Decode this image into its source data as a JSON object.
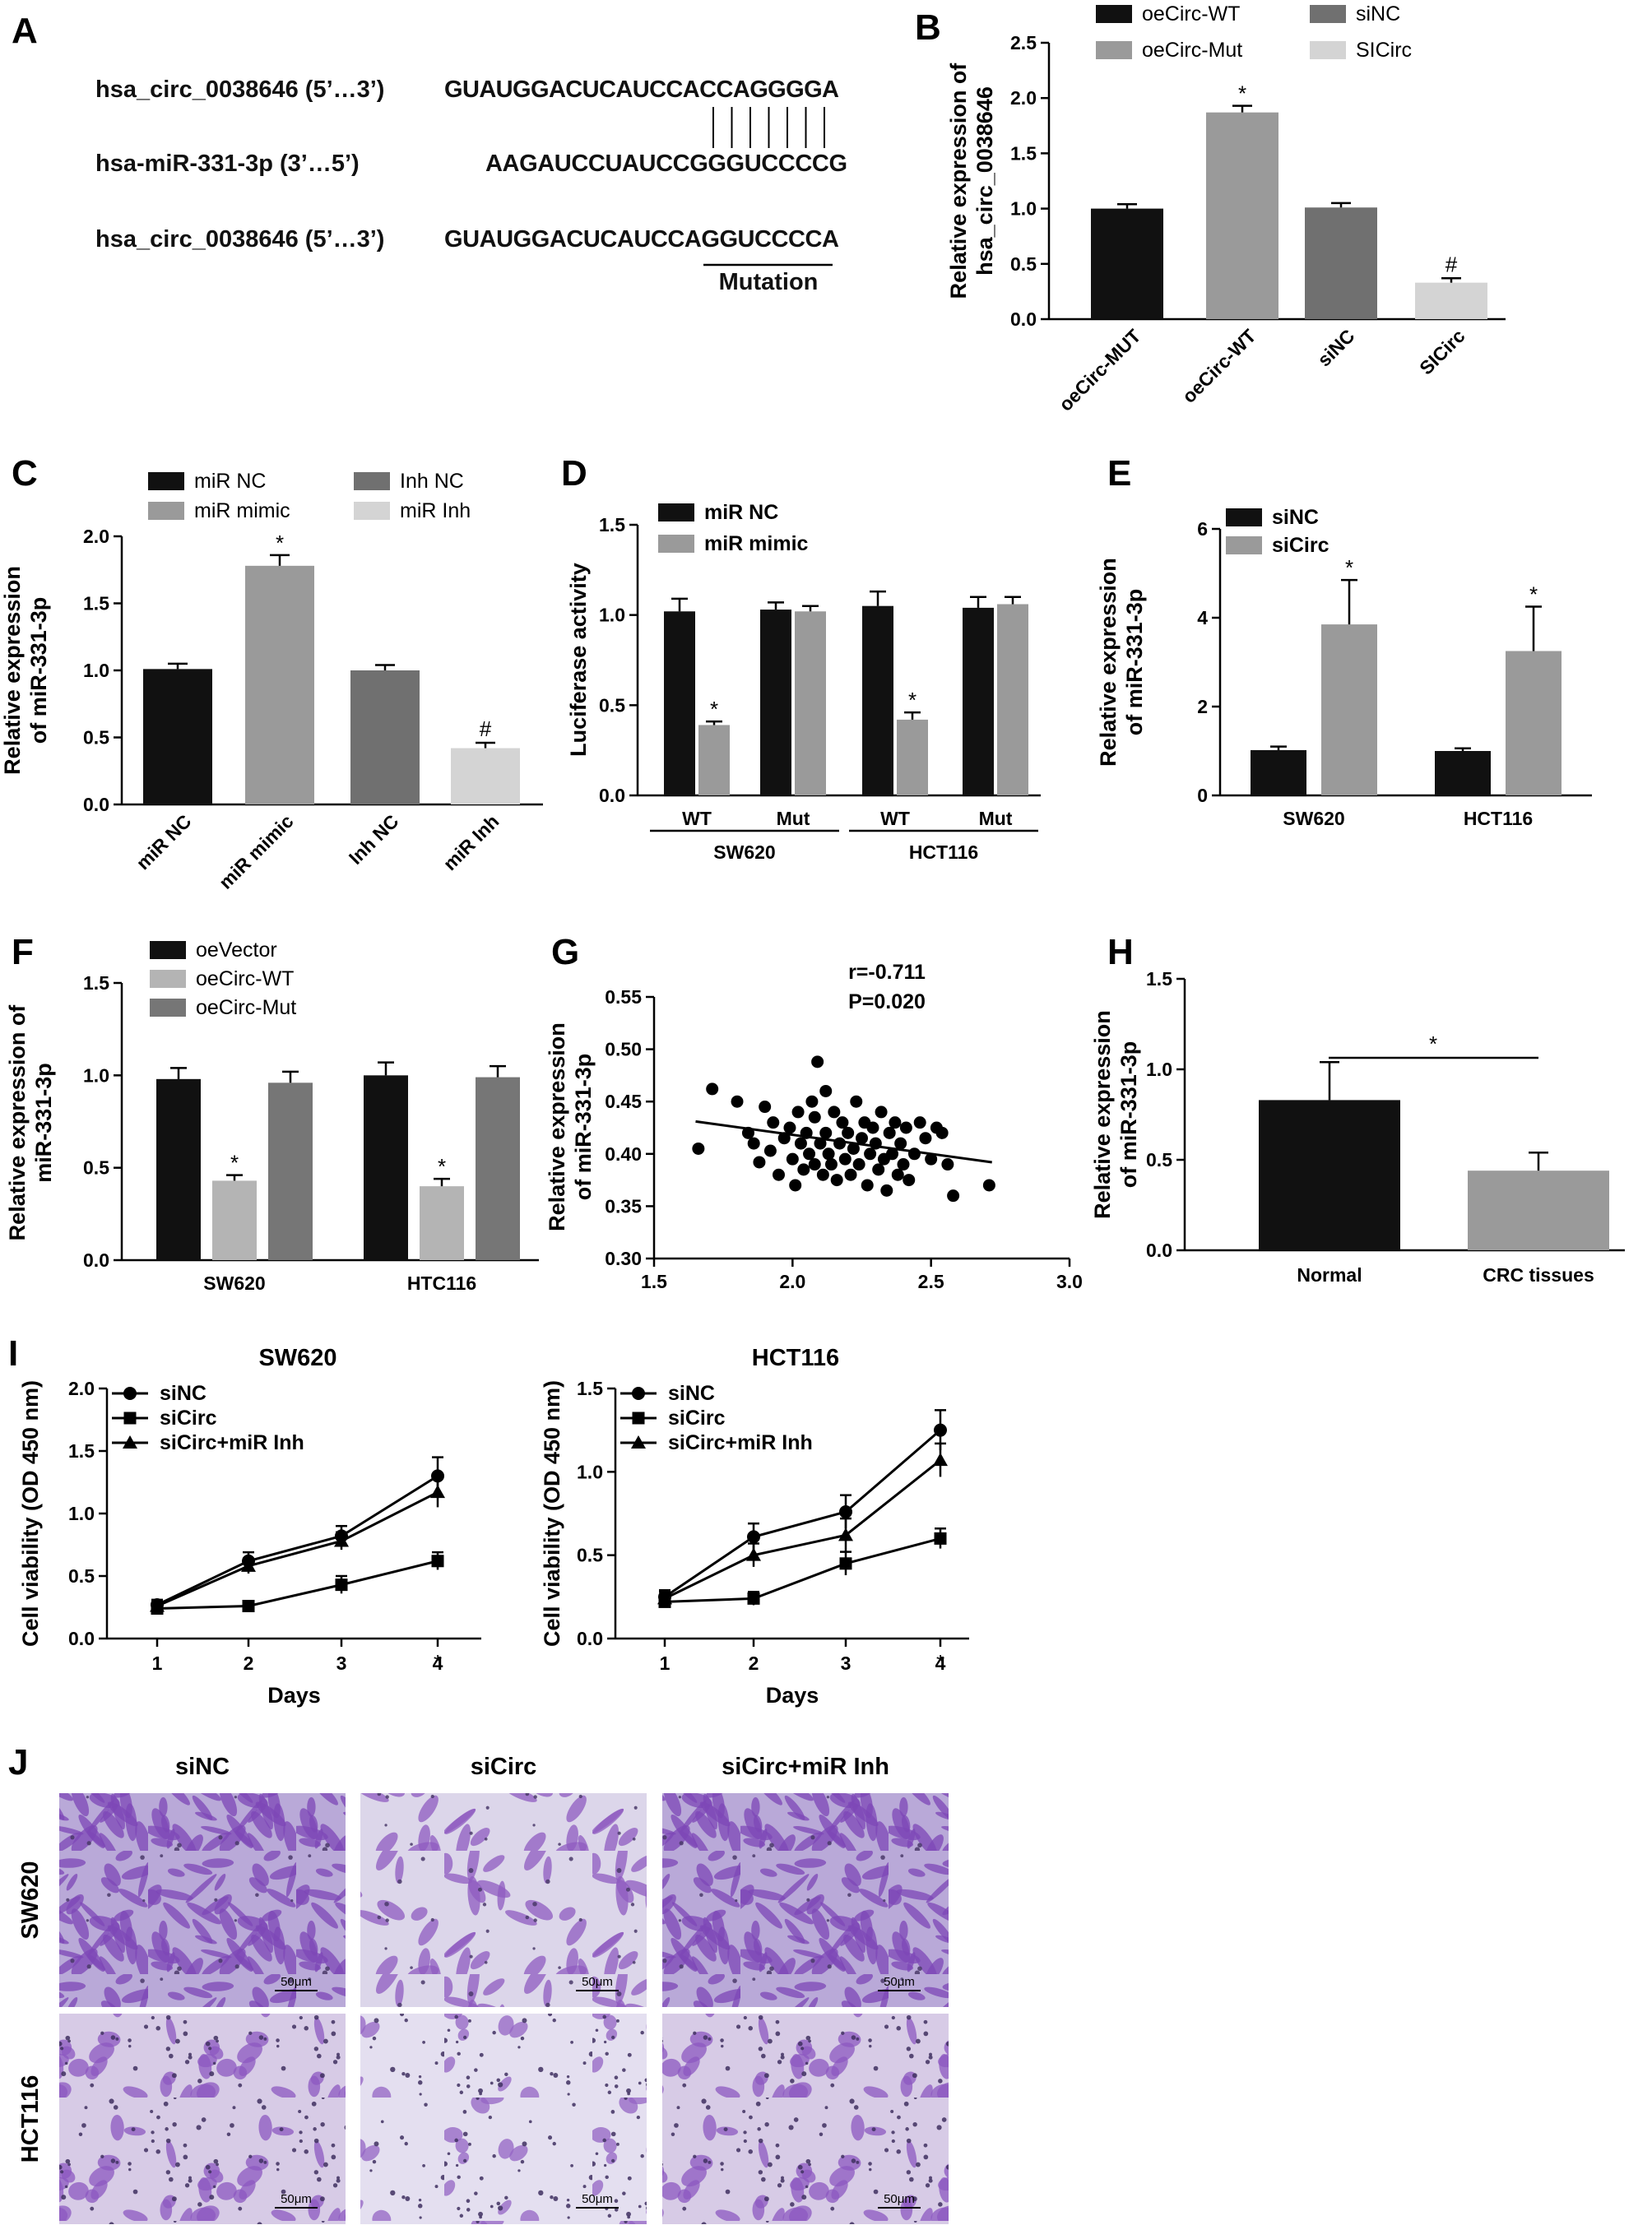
{
  "panels": {
    "A": {
      "label": "A",
      "rows": [
        {
          "name": "hsa_circ_0038646 (5’…3’)",
          "seq": "GUAUGGACUCAUCCACCAGGGGA"
        },
        {
          "name": "hsa-miR-331-3p (3’…5’)",
          "seq": "AAGAUCCUAUCCGGGUCCCCG"
        },
        {
          "name": "hsa_circ_0038646 (5’…3’)",
          "seq": "GUAUGGACUCAUCCAGGUCCCCA"
        }
      ],
      "mutation_label": "Mutation"
    },
    "J": {
      "label": "J",
      "columns": [
        "siNC",
        "siCirc",
        "siCirc+miR Inh"
      ],
      "rows": [
        "SW620",
        "HCT116"
      ],
      "scalebar": "50μm"
    }
  },
  "chart_data": [
    {
      "panel": "B",
      "type": "bar",
      "categories": [
        "oeCirc-MUT",
        "oeCirc-WT",
        "siNC",
        "SICirc"
      ],
      "values": [
        1.0,
        1.87,
        1.01,
        0.33
      ],
      "errors": [
        0.04,
        0.06,
        0.04,
        0.04
      ],
      "annotations": [
        "",
        "*",
        "",
        "#"
      ],
      "colors": [
        "#111111",
        "#9a9a9a",
        "#707070",
        "#d4d4d4"
      ],
      "legend": [
        "oeCirc-WT",
        "oeCirc-Mut",
        "siNC",
        "SICirc"
      ],
      "ylabel": [
        "Relative expression of",
        "hsa_circ_0038646"
      ],
      "ylim": [
        0,
        2.5
      ],
      "yticks": [
        "0.0",
        "0.5",
        "1.0",
        "1.5",
        "2.0",
        "2.5"
      ]
    },
    {
      "panel": "C",
      "type": "bar",
      "categories": [
        "miR NC",
        "miR mimic",
        "Inh NC",
        "miR Inh"
      ],
      "values": [
        1.01,
        1.78,
        1.0,
        0.42
      ],
      "errors": [
        0.04,
        0.08,
        0.04,
        0.04
      ],
      "annotations": [
        "",
        "*",
        "",
        "#"
      ],
      "colors": [
        "#111111",
        "#9a9a9a",
        "#707070",
        "#d4d4d4"
      ],
      "legend": [
        "miR NC",
        "miR mimic",
        "Inh NC",
        "miR Inh"
      ],
      "ylabel": [
        "Relative expression",
        "of miR-331-3p"
      ],
      "ylim": [
        0,
        2.0
      ],
      "yticks": [
        "0.0",
        "0.5",
        "1.0",
        "1.5",
        "2.0"
      ]
    },
    {
      "panel": "D",
      "type": "bar",
      "categories": [
        "WT",
        "Mut",
        "WT",
        "Mut"
      ],
      "groups": [
        "SW620",
        "HCT116"
      ],
      "series": [
        {
          "name": "miR NC",
          "values": [
            1.02,
            1.03,
            1.05,
            1.04
          ],
          "errors": [
            0.07,
            0.04,
            0.08,
            0.06
          ]
        },
        {
          "name": "miR mimic",
          "values": [
            0.39,
            1.02,
            0.42,
            1.06
          ],
          "errors": [
            0.02,
            0.03,
            0.04,
            0.04
          ]
        }
      ],
      "annotations": [
        "*",
        "",
        "*",
        ""
      ],
      "colors": [
        "#111111",
        "#9a9a9a"
      ],
      "ylabel": [
        "Luciferase activity"
      ],
      "ylim": [
        0,
        1.5
      ],
      "yticks": [
        "0.0",
        "0.5",
        "1.0",
        "1.5"
      ]
    },
    {
      "panel": "E",
      "type": "bar",
      "categories": [
        "SW620",
        "HCT116"
      ],
      "series": [
        {
          "name": "siNC",
          "values": [
            1.02,
            1.0
          ],
          "errors": [
            0.08,
            0.06
          ]
        },
        {
          "name": "siCirc",
          "values": [
            3.85,
            3.25
          ],
          "errors": [
            1.0,
            1.0
          ]
        }
      ],
      "annotations": [
        "*",
        "*"
      ],
      "colors": [
        "#111111",
        "#9a9a9a"
      ],
      "ylabel": [
        "Relative expression",
        "of miR-331-3p"
      ],
      "ylim": [
        0,
        6
      ],
      "yticks": [
        "0",
        "2",
        "4",
        "6"
      ]
    },
    {
      "panel": "F",
      "type": "bar",
      "categories": [
        "SW620",
        "HTC116"
      ],
      "series": [
        {
          "name": "oeVector",
          "values": [
            0.98,
            1.0
          ],
          "errors": [
            0.06,
            0.07
          ]
        },
        {
          "name": "oeCirc-WT",
          "values": [
            0.43,
            0.4
          ],
          "errors": [
            0.03,
            0.04
          ]
        },
        {
          "name": "oeCirc-Mut",
          "values": [
            0.96,
            0.99
          ],
          "errors": [
            0.06,
            0.06
          ]
        }
      ],
      "annotations": [
        "*",
        "*"
      ],
      "colors": [
        "#111111",
        "#b4b4b4",
        "#767676"
      ],
      "ylabel": [
        "Relative expression of",
        "miR-331-3p"
      ],
      "ylim": [
        0,
        1.5
      ],
      "yticks": [
        "0.0",
        "0.5",
        "1.0",
        "1.5"
      ]
    },
    {
      "panel": "G",
      "type": "scatter",
      "text": [
        "r=-0.711",
        "P=0.020"
      ],
      "ylabel": [
        "Relative expression",
        "of miR-331-3p"
      ],
      "xlim": [
        1.5,
        3.0
      ],
      "ylim": [
        0.3,
        0.55
      ],
      "xticks": [
        "1.5",
        "2.0",
        "2.5",
        "3.0"
      ],
      "yticks": [
        "0.30",
        "0.35",
        "0.40",
        "0.45",
        "0.50",
        "0.55"
      ],
      "trend": [
        [
          1.65,
          0.431
        ],
        [
          2.72,
          0.392
        ]
      ],
      "x": [
        1.66,
        1.71,
        1.8,
        1.84,
        1.86,
        1.88,
        1.9,
        1.92,
        1.93,
        1.95,
        1.97,
        1.99,
        2.0,
        2.01,
        2.02,
        2.03,
        2.04,
        2.05,
        2.06,
        2.07,
        2.08,
        2.08,
        2.09,
        2.1,
        2.11,
        2.12,
        2.12,
        2.13,
        2.14,
        2.15,
        2.16,
        2.17,
        2.18,
        2.19,
        2.2,
        2.21,
        2.22,
        2.23,
        2.24,
        2.25,
        2.26,
        2.27,
        2.28,
        2.29,
        2.3,
        2.31,
        2.32,
        2.33,
        2.34,
        2.35,
        2.36,
        2.37,
        2.38,
        2.39,
        2.4,
        2.41,
        2.42,
        2.44,
        2.46,
        2.48,
        2.5,
        2.52,
        2.54,
        2.56,
        2.58,
        2.71
      ],
      "y": [
        0.405,
        0.462,
        0.45,
        0.42,
        0.41,
        0.392,
        0.445,
        0.403,
        0.43,
        0.38,
        0.415,
        0.425,
        0.395,
        0.37,
        0.44,
        0.41,
        0.385,
        0.42,
        0.4,
        0.45,
        0.435,
        0.39,
        0.488,
        0.41,
        0.38,
        0.46,
        0.42,
        0.4,
        0.39,
        0.44,
        0.375,
        0.41,
        0.43,
        0.395,
        0.42,
        0.38,
        0.405,
        0.45,
        0.39,
        0.415,
        0.43,
        0.37,
        0.4,
        0.425,
        0.41,
        0.385,
        0.44,
        0.395,
        0.365,
        0.42,
        0.4,
        0.43,
        0.38,
        0.41,
        0.39,
        0.425,
        0.375,
        0.4,
        0.43,
        0.415,
        0.395,
        0.425,
        0.42,
        0.39,
        0.36,
        0.37
      ]
    },
    {
      "panel": "H",
      "type": "bar",
      "categories": [
        "Normal",
        "CRC tissues"
      ],
      "values": [
        0.83,
        0.44
      ],
      "errors": [
        0.21,
        0.1
      ],
      "colors": [
        "#111111",
        "#9a9a9a"
      ],
      "annotation": "*",
      "ylabel": [
        "Relative expression",
        "of miR-331-3p"
      ],
      "ylim": [
        0,
        1.5
      ],
      "yticks": [
        "0.0",
        "0.5",
        "1.0",
        "1.5"
      ]
    },
    {
      "panel": "I",
      "type": "line",
      "title": "SW620",
      "x": [
        1,
        2,
        3,
        4
      ],
      "series": [
        {
          "name": "siNC",
          "marker": "circle",
          "values": [
            0.27,
            0.62,
            0.82,
            1.3
          ],
          "errors": [
            0.04,
            0.07,
            0.08,
            0.15
          ]
        },
        {
          "name": "siCirc",
          "marker": "square",
          "values": [
            0.24,
            0.26,
            0.43,
            0.62
          ],
          "errors": [
            0.03,
            0.04,
            0.07,
            0.07
          ]
        },
        {
          "name": "siCirc+miR Inh",
          "marker": "triangle",
          "values": [
            0.26,
            0.58,
            0.78,
            1.17
          ],
          "errors": [
            0.04,
            0.06,
            0.07,
            0.12
          ]
        }
      ],
      "annotation": "*",
      "xlabel": "Days",
      "ylabel": "Cell viability (OD 450 nm)",
      "ylim": [
        0,
        2.0
      ],
      "yticks": [
        "0.0",
        "0.5",
        "1.0",
        "1.5",
        "2.0"
      ],
      "xticks": [
        "1",
        "2",
        "3",
        "4"
      ]
    },
    {
      "panel": "I2",
      "type": "line",
      "title": "HCT116",
      "x": [
        1,
        2,
        3,
        4
      ],
      "series": [
        {
          "name": "siNC",
          "marker": "circle",
          "values": [
            0.25,
            0.61,
            0.76,
            1.25
          ],
          "errors": [
            0.04,
            0.08,
            0.1,
            0.12
          ]
        },
        {
          "name": "siCirc",
          "marker": "square",
          "values": [
            0.22,
            0.24,
            0.45,
            0.6
          ],
          "errors": [
            0.03,
            0.04,
            0.07,
            0.06
          ]
        },
        {
          "name": "siCirc+miR Inh",
          "marker": "triangle",
          "values": [
            0.24,
            0.5,
            0.62,
            1.07
          ],
          "errors": [
            0.04,
            0.07,
            0.1,
            0.1
          ]
        }
      ],
      "annotation": "*",
      "xlabel": "Days",
      "ylabel": "Cell viability (OD 450 nm)",
      "ylim": [
        0,
        1.5
      ],
      "yticks": [
        "0.0",
        "0.5",
        "1.0",
        "1.5"
      ],
      "xticks": [
        "1",
        "2",
        "3",
        "4"
      ]
    }
  ]
}
